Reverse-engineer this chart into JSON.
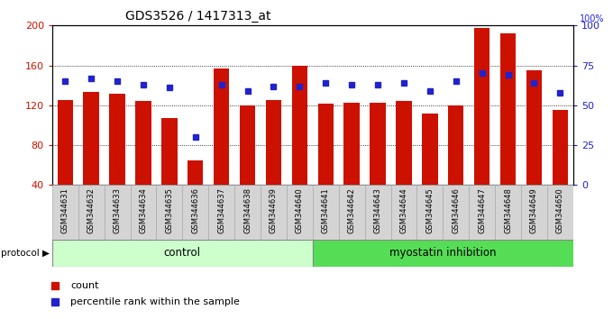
{
  "title": "GDS3526 / 1417313_at",
  "samples": [
    "GSM344631",
    "GSM344632",
    "GSM344633",
    "GSM344634",
    "GSM344635",
    "GSM344636",
    "GSM344637",
    "GSM344638",
    "GSM344639",
    "GSM344640",
    "GSM344641",
    "GSM344642",
    "GSM344643",
    "GSM344644",
    "GSM344645",
    "GSM344646",
    "GSM344647",
    "GSM344648",
    "GSM344649",
    "GSM344650"
  ],
  "count_values": [
    125,
    133,
    132,
    124,
    107,
    65,
    157,
    120,
    125,
    160,
    122,
    123,
    123,
    124,
    112,
    120,
    198,
    192,
    155,
    115
  ],
  "percentile_values": [
    65,
    67,
    65,
    63,
    61,
    30,
    63,
    59,
    62,
    62,
    64,
    63,
    63,
    64,
    59,
    65,
    70,
    69,
    64,
    58
  ],
  "control_samples": 10,
  "myostatin_samples": 10,
  "control_label": "control",
  "myostatin_label": "myostatin inhibition",
  "protocol_label": "protocol",
  "count_label": "count",
  "percentile_label": "percentile rank within the sample",
  "ylim_left": [
    40,
    200
  ],
  "ylim_right": [
    0,
    100
  ],
  "yticks_left": [
    40,
    80,
    120,
    160,
    200
  ],
  "yticks_right": [
    0,
    25,
    50,
    75,
    100
  ],
  "bar_color": "#cc1100",
  "dot_color": "#2222cc",
  "control_bg": "#ccffcc",
  "myostatin_bg": "#55dd55",
  "plot_bg": "#ffffff",
  "xtick_bg": "#d4d4d4",
  "bar_width": 0.6
}
